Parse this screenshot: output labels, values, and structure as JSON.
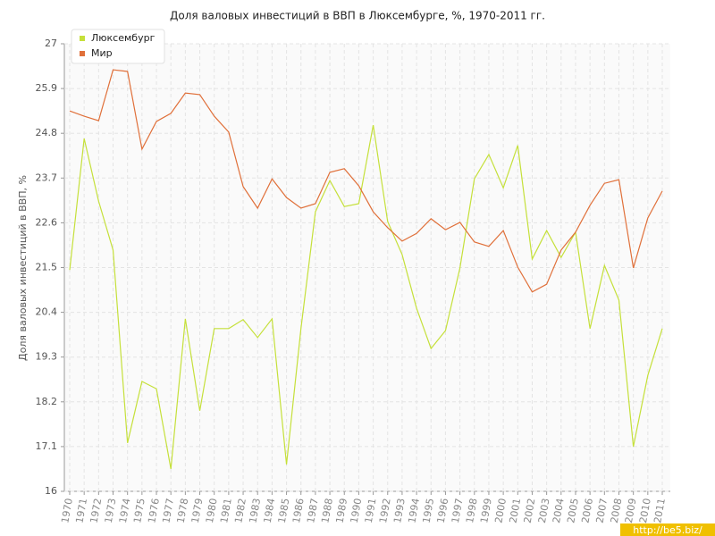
{
  "chart_data": {
    "type": "line",
    "title": "Доля валовых инвестиций в ВВП в Люксембурге, %, 1970-2011 гг.",
    "y_label": "Доля валовых инвестиций в ВВП, %",
    "categories": [
      "1970",
      "1971",
      "1972",
      "1973",
      "1974",
      "1975",
      "1976",
      "1977",
      "1978",
      "1979",
      "1980",
      "1981",
      "1982",
      "1983",
      "1984",
      "1985",
      "1986",
      "1987",
      "1988",
      "1989",
      "1990",
      "1991",
      "1992",
      "1993",
      "1994",
      "1995",
      "1996",
      "1997",
      "1998",
      "1999",
      "2000",
      "2001",
      "2002",
      "2003",
      "2004",
      "2005",
      "2006",
      "2007",
      "2008",
      "2009",
      "2010",
      "2011"
    ],
    "series": [
      {
        "name": "Люксембург",
        "color": "#c5e03a",
        "values": [
          21.44,
          24.67,
          23.13,
          21.93,
          17.19,
          18.7,
          18.52,
          16.55,
          20.24,
          17.98,
          20.0,
          20.0,
          20.22,
          19.78,
          20.24,
          16.66,
          20.0,
          22.87,
          23.64,
          23.0,
          23.07,
          25.0,
          22.63,
          21.82,
          20.5,
          19.51,
          19.95,
          21.49,
          23.68,
          24.28,
          23.46,
          24.5,
          21.71,
          22.41,
          21.75,
          22.37,
          20.0,
          21.55,
          20.7,
          17.1,
          18.85,
          20.0
        ]
      },
      {
        "name": "Мир",
        "color": "#e0703a",
        "values": [
          25.35,
          25.22,
          25.11,
          26.36,
          26.32,
          24.41,
          25.09,
          25.29,
          25.79,
          25.75,
          25.22,
          24.83,
          23.49,
          22.96,
          23.68,
          23.22,
          22.96,
          23.07,
          23.84,
          23.93,
          23.51,
          22.87,
          22.48,
          22.15,
          22.34,
          22.7,
          22.43,
          22.61,
          22.13,
          22.02,
          22.41,
          21.51,
          20.9,
          21.09,
          21.93,
          22.37,
          23.03,
          23.57,
          23.66,
          21.49,
          22.72,
          23.38
        ]
      }
    ],
    "ylim": [
      16,
      27
    ],
    "yticks": [
      16,
      17.1,
      18.2,
      19.3,
      20.4,
      21.5,
      22.6,
      23.7,
      24.8,
      25.9,
      27
    ],
    "grid": true,
    "legend": "top-left",
    "watermark": "http://be5.biz/"
  }
}
